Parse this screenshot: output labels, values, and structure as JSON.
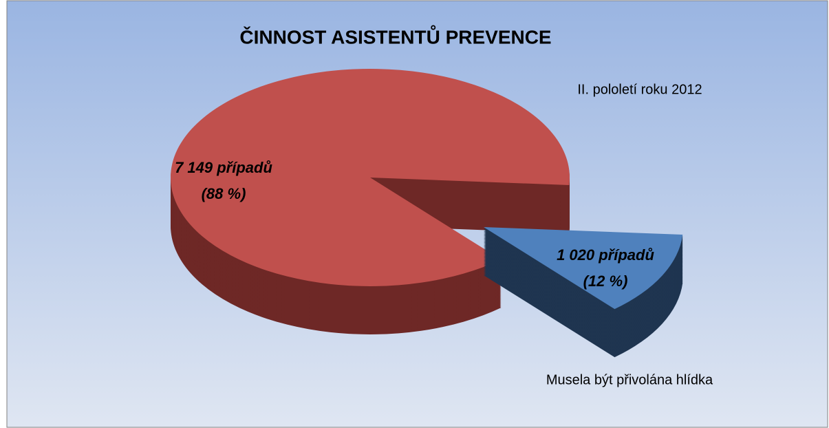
{
  "chart_data": {
    "type": "pie",
    "title": "ČINNOST ASISTENTŮ PREVENCE",
    "subtitle": "II. pololetí roku 2012",
    "categories": [
      null,
      "Musela být přivolána hlídka"
    ],
    "values": [
      7149,
      1020
    ],
    "value_labels": [
      [
        "7 149 případů",
        "(88 %)"
      ],
      [
        "1 020 případů",
        "(12 %)"
      ]
    ],
    "colors": [
      "#c0504d",
      "#4f81bd"
    ],
    "side_colors": [
      "#6e2826",
      "#1f3550"
    ],
    "legend": false
  }
}
